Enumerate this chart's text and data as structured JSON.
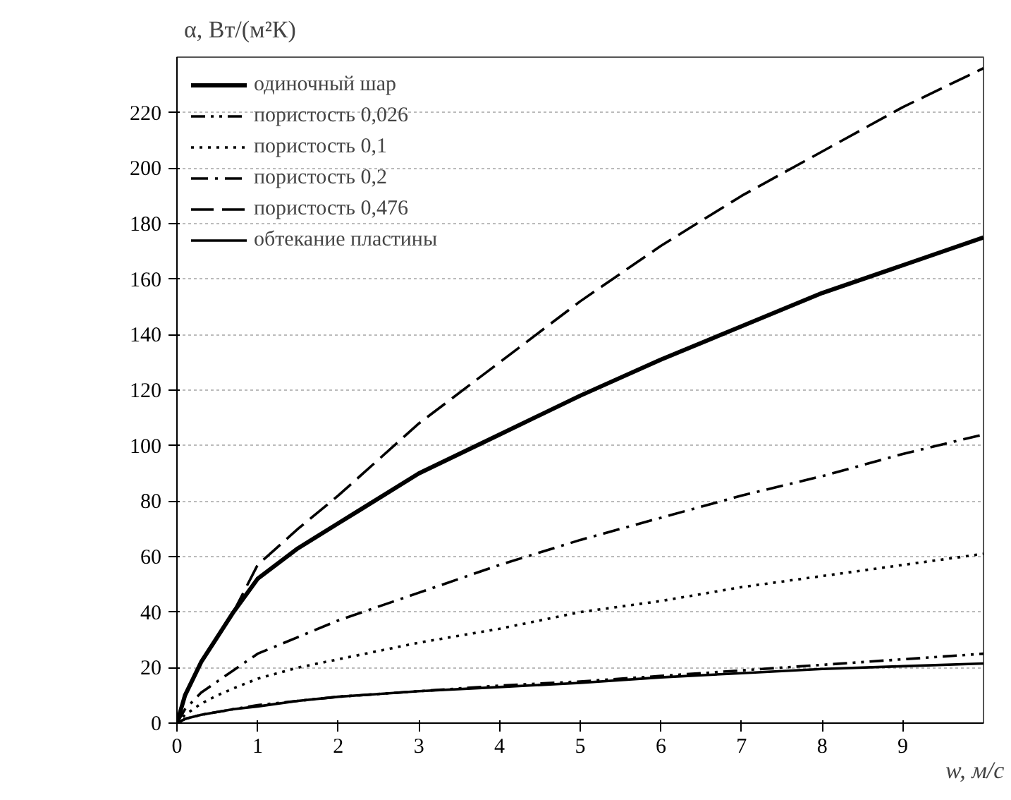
{
  "chart_data": {
    "type": "line",
    "xlabel": "w, м/с",
    "ylabel": "α, Вт/(м²К)",
    "x": [
      0,
      0.1,
      0.3,
      0.5,
      0.7,
      1,
      1.5,
      2,
      3,
      4,
      5,
      6,
      7,
      8,
      9,
      10
    ],
    "xlim": [
      0,
      10
    ],
    "xticks": [
      0,
      1,
      2,
      3,
      4,
      5,
      6,
      7,
      8,
      9
    ],
    "ylim": [
      0,
      240
    ],
    "yticks": [
      0,
      20,
      40,
      60,
      80,
      100,
      120,
      140,
      160,
      180,
      200,
      220
    ],
    "grid": "y",
    "legend": "top left",
    "series": [
      {
        "name": "одиночный шар",
        "color": "#000000",
        "line_style": "solid",
        "values": [
          0,
          10,
          22,
          31,
          40,
          52,
          63,
          72,
          90,
          104,
          118,
          131,
          143,
          155,
          165,
          175
        ]
      },
      {
        "name": "пористость 0,026",
        "color": "#000000",
        "line_style": "dashdotdot",
        "values": [
          0,
          1.5,
          3,
          4,
          5,
          6.5,
          8,
          9.5,
          11.5,
          13.5,
          15,
          17,
          19,
          21,
          23,
          25
        ]
      },
      {
        "name": "пористость 0,1",
        "color": "#000000",
        "line_style": "dotted",
        "values": [
          0,
          3,
          7,
          10,
          12.5,
          16,
          20,
          23,
          29,
          34,
          40,
          44,
          49,
          53,
          57,
          61
        ]
      },
      {
        "name": "пористость 0,2",
        "color": "#000000",
        "line_style": "dashdot",
        "values": [
          0,
          5,
          11,
          15,
          19,
          25,
          31,
          37,
          47,
          57,
          66,
          74,
          82,
          89,
          97,
          104
        ]
      },
      {
        "name": "пористость 0,476",
        "color": "#000000",
        "line_style": "dashed",
        "values": [
          0,
          10,
          22,
          31,
          40,
          57,
          70,
          82,
          108,
          130,
          152,
          172,
          190,
          206,
          222,
          236
        ]
      },
      {
        "name": "обтекание пластины",
        "color": "#000000",
        "line_style": "solid",
        "values": [
          0,
          1.5,
          3,
          4,
          5,
          6,
          8,
          9.5,
          11.5,
          13,
          14.5,
          16.5,
          18,
          19.5,
          20.5,
          21.5
        ]
      }
    ]
  }
}
